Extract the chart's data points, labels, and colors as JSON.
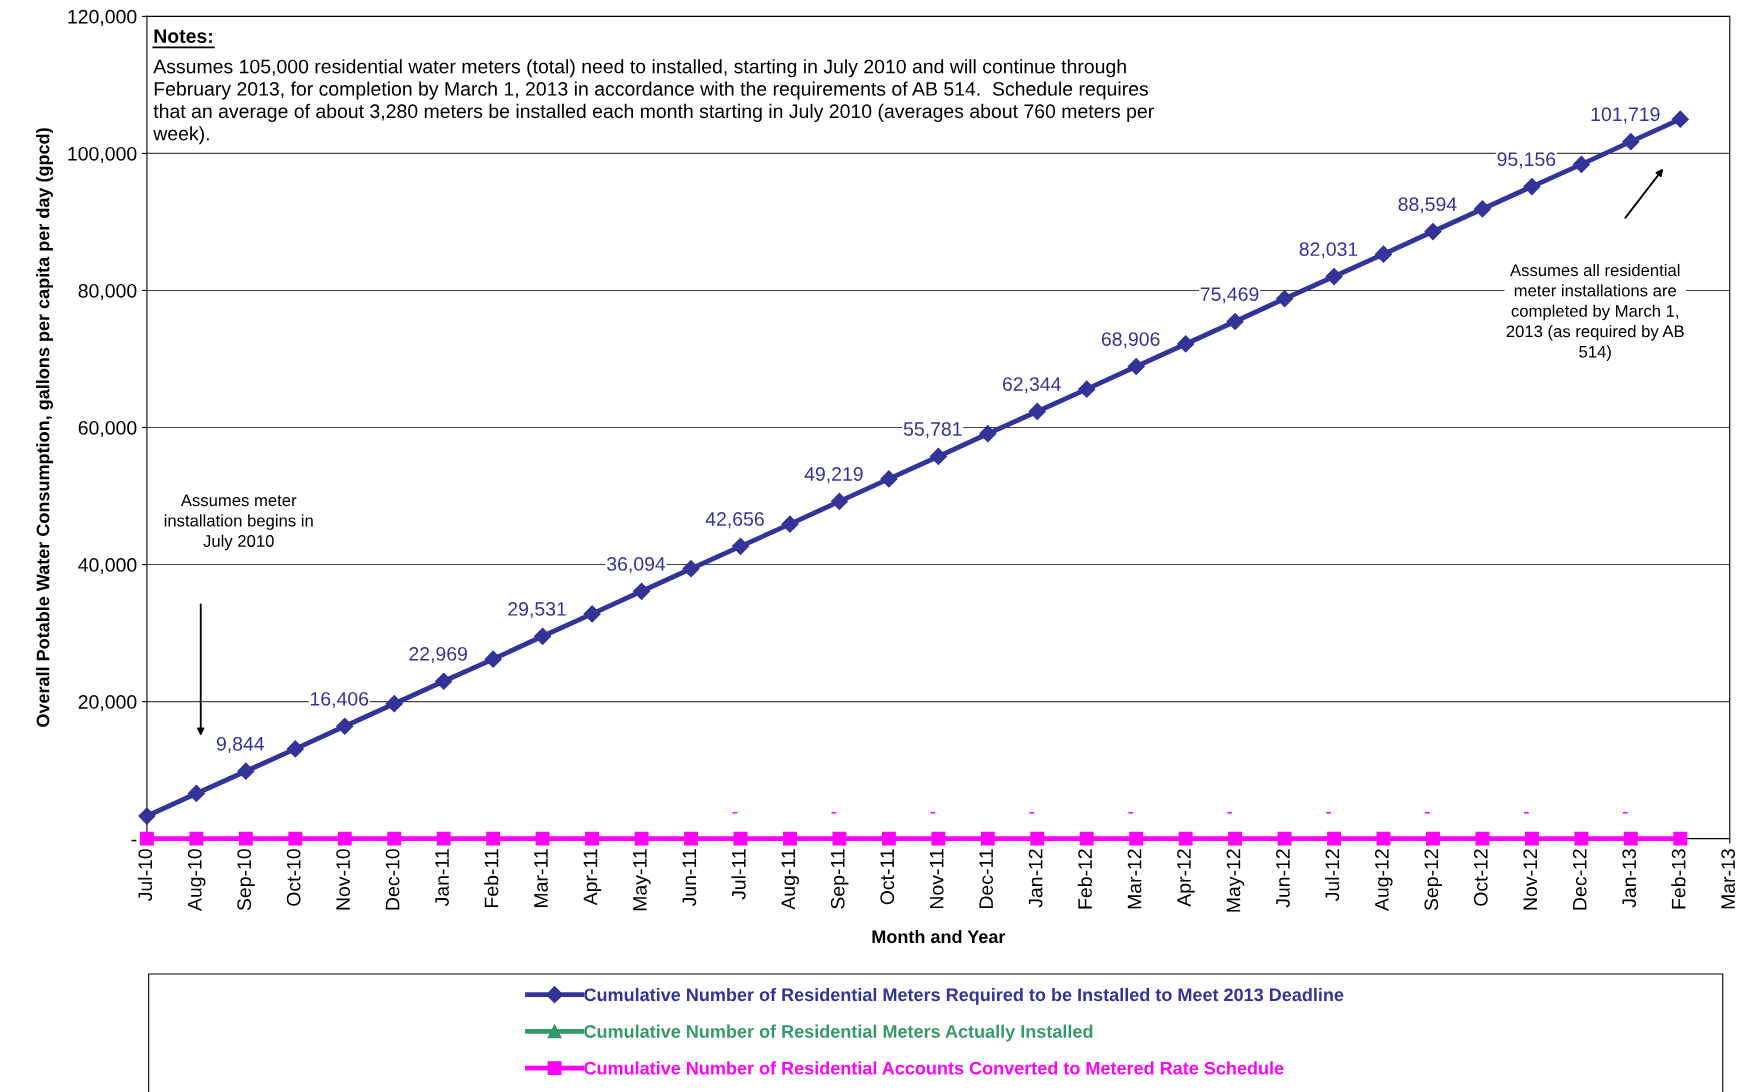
{
  "chart_data": {
    "type": "line",
    "xlabel": "Month and Year",
    "ylabel": "Overall Potable Water Consumption, gallons per capita per day (gpcd)",
    "categories": [
      "Jul-10",
      "Aug-10",
      "Sep-10",
      "Oct-10",
      "Nov-10",
      "Dec-10",
      "Jan-11",
      "Feb-11",
      "Mar-11",
      "Apr-11",
      "May-11",
      "Jun-11",
      "Jul-11",
      "Aug-11",
      "Sep-11",
      "Oct-11",
      "Nov-11",
      "Dec-11",
      "Jan-12",
      "Feb-12",
      "Mar-12",
      "Apr-12",
      "May-12",
      "Jun-12",
      "Jul-12",
      "Aug-12",
      "Sep-12",
      "Oct-12",
      "Nov-12",
      "Dec-12",
      "Jan-13",
      "Feb-13",
      "Mar-13"
    ],
    "series": [
      {
        "name": "Cumulative Number of Residential Meters Required to be Installed to Meet 2013 Deadline",
        "color": "#333399",
        "marker": "diamond",
        "values": [
          3300,
          6600,
          9844,
          13100,
          16406,
          19700,
          22969,
          26200,
          29531,
          32800,
          36094,
          39400,
          42656,
          45900,
          49219,
          52500,
          55781,
          59100,
          62344,
          65600,
          68906,
          72200,
          75469,
          78800,
          82031,
          85300,
          88594,
          91900,
          95156,
          98400,
          101719,
          105000,
          null
        ],
        "value_labels": [
          null,
          null,
          "9,844",
          null,
          "16,406",
          null,
          "22,969",
          null,
          "29,531",
          null,
          "36,094",
          null,
          "42,656",
          null,
          "49,219",
          null,
          "55,781",
          null,
          "62,344",
          null,
          "68,906",
          null,
          "75,469",
          null,
          "82,031",
          null,
          "88,594",
          null,
          "95,156",
          null,
          "101,719",
          null,
          null
        ]
      },
      {
        "name": "Cumulative Number of Residential Meters Actually Installed",
        "color": "#339966",
        "marker": "triangle",
        "values": [
          null,
          null,
          null,
          null,
          null,
          null,
          null,
          null,
          null,
          null,
          null,
          null,
          null,
          null,
          null,
          null,
          null,
          null,
          null,
          null,
          null,
          null,
          null,
          null,
          null,
          null,
          null,
          null,
          null,
          null,
          null,
          null,
          null
        ]
      },
      {
        "name": "Cumulative Number of Residential Accounts Converted to Metered Rate Schedule",
        "color": "#ff00ff",
        "marker": "square",
        "values": [
          0,
          0,
          0,
          0,
          0,
          0,
          0,
          0,
          0,
          0,
          0,
          0,
          0,
          0,
          0,
          0,
          0,
          0,
          0,
          0,
          0,
          0,
          0,
          0,
          0,
          0,
          0,
          0,
          0,
          0,
          0,
          0,
          null
        ],
        "value_labels": [
          null,
          null,
          null,
          null,
          null,
          null,
          null,
          null,
          null,
          null,
          null,
          null,
          "-",
          null,
          "-",
          null,
          "-",
          null,
          "-",
          null,
          "-",
          null,
          "-",
          null,
          "-",
          null,
          "-",
          null,
          "-",
          null,
          "-",
          null,
          null
        ]
      }
    ],
    "ylim": [
      0,
      120000
    ],
    "yticks": [
      {
        "value": 0,
        "label": "-"
      },
      {
        "value": 20000,
        "label": "20,000"
      },
      {
        "value": 40000,
        "label": "40,000"
      },
      {
        "value": 60000,
        "label": "60,000"
      },
      {
        "value": 80000,
        "label": "80,000"
      },
      {
        "value": 100000,
        "label": "100,000"
      },
      {
        "value": 120000,
        "label": "120,000"
      }
    ],
    "grid": "y",
    "legend": "bottom",
    "line_style": "solid",
    "annotations": [
      "Notes:",
      "Assumes 105,000 residential water meters (total) need to installed, starting in July 2010 and will continue through\nFebruary 2013, for completion by March 1, 2013 in accordance with the requirements of AB 514.  Schedule requires\nthat an average of about 3,280 meters be installed each month starting in July 2010 (averages about 760 meters per\nweek).",
      "Assumes meter\ninstallation begins in\nJuly 2010",
      "Assumes all residential\nmeter installations are\ncompleted by March 1,\n2013 (as required by AB\n514)"
    ]
  }
}
